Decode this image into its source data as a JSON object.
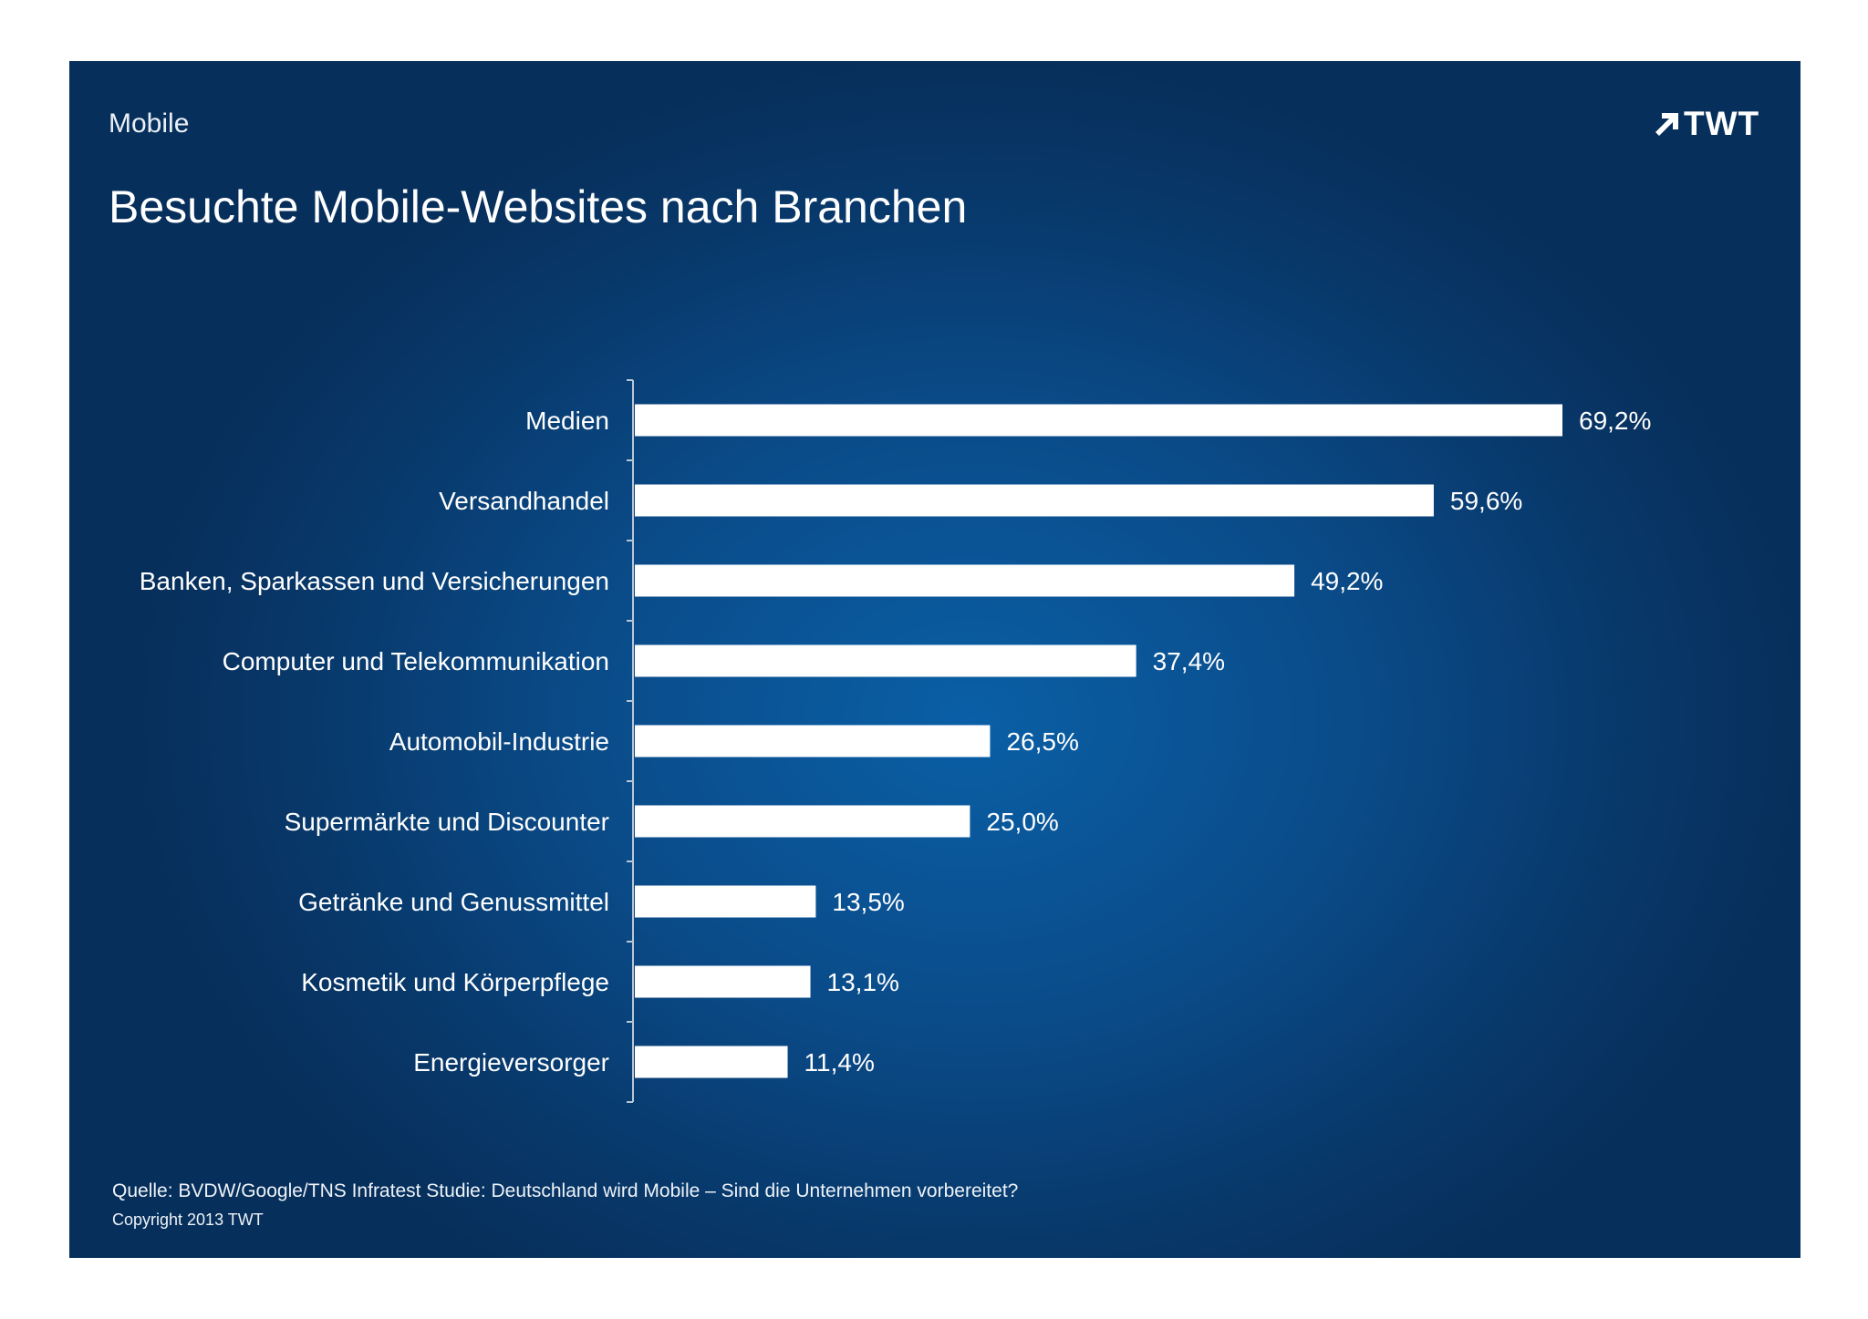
{
  "header": {
    "section": "Mobile",
    "brand": "TWT",
    "brand_icon": "arrow-up-right-icon"
  },
  "chart_data": {
    "type": "bar",
    "orientation": "horizontal",
    "title": "Besuchte Mobile-Websites nach Branchen",
    "categories": [
      "Medien",
      "Versandhandel",
      "Banken, Sparkassen und Versicherungen",
      "Computer und Telekommunikation",
      "Automobil-Industrie",
      "Supermärkte und Discounter",
      "Getränke und Genussmittel",
      "Kosmetik und Körperpflege",
      "Energieversorger"
    ],
    "values": [
      69.2,
      59.6,
      49.2,
      37.4,
      26.5,
      25.0,
      13.5,
      13.1,
      11.4
    ],
    "value_labels": [
      "69,2%",
      "59,6%",
      "49,2%",
      "37,4%",
      "26,5%",
      "25,0%",
      "13,5%",
      "13,1%",
      "11,4%"
    ],
    "xlim": [
      0,
      100
    ],
    "grid": false,
    "bar_color": "#ffffff",
    "background_color": "#0a4c8a"
  },
  "footer": {
    "source": "Quelle: BVDW/Google/TNS Infratest Studie: Deutschland wird Mobile – Sind die Unternehmen vorbereitet?",
    "copyright": "Copyright 2013 TWT"
  }
}
